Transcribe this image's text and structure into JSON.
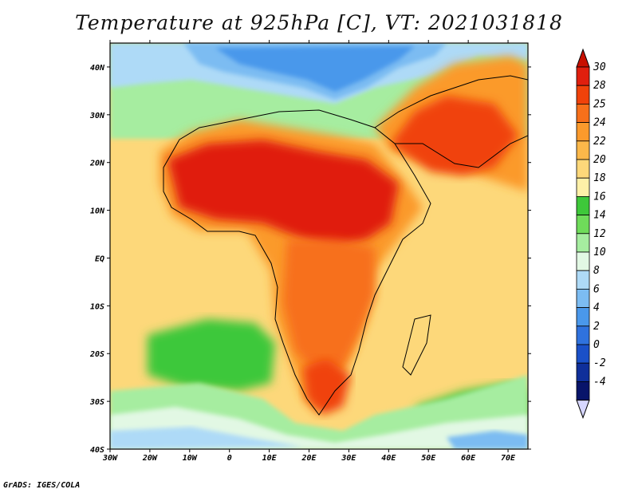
{
  "title": "Temperature at 925hPa [C], VT: 2021031818",
  "footer": "GrADS: IGES/COLA",
  "map": {
    "lat_labels": [
      "40N",
      "30N",
      "20N",
      "10N",
      "EQ",
      "10S",
      "20S",
      "30S",
      "40S"
    ],
    "lon_labels": [
      "30W",
      "20W",
      "10W",
      "0",
      "10E",
      "20E",
      "30E",
      "40E",
      "50E",
      "60E",
      "70E"
    ],
    "extent": {
      "lon_min": -30,
      "lon_max": 75,
      "lat_min": -40,
      "lat_max": 45
    }
  },
  "colorbar": {
    "labels": [
      "30",
      "28",
      "25",
      "24",
      "22",
      "20",
      "18",
      "16",
      "14",
      "12",
      "10",
      "8",
      "6",
      "4",
      "2",
      "0",
      "-2",
      "-4"
    ],
    "colors": [
      "#e01f0e",
      "#f0420a",
      "#f7701a",
      "#fb9a2c",
      "#fcb84a",
      "#fdd87a",
      "#fef0a8",
      "#3ec83a",
      "#6fdc5a",
      "#a6eda0",
      "#e2f8e4",
      "#aedaf7",
      "#7cbcf2",
      "#4a98eb",
      "#2f72de",
      "#1a50c8",
      "#0f2f9a",
      "#08146a"
    ],
    "top_arrow_color": "#c81000",
    "bottom_arrow_color": "#d7d7ff"
  }
}
